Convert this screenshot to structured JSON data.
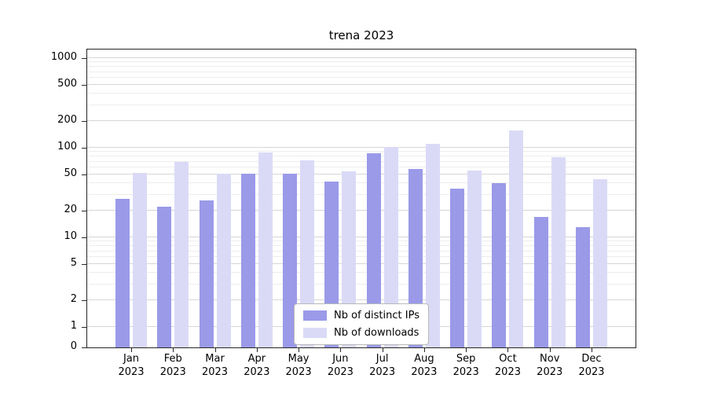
{
  "chart_data": {
    "type": "bar",
    "title": "trena 2023",
    "yscale": "symlog",
    "grid": true,
    "legend_position": "lower center",
    "yticks": [
      0,
      1,
      2,
      5,
      10,
      20,
      50,
      100,
      200,
      500,
      1000
    ],
    "ylim": [
      0,
      1400
    ],
    "categories": [
      "Jan 2023",
      "Feb 2023",
      "Mar 2023",
      "Apr 2023",
      "May 2023",
      "Jun 2023",
      "Jul 2023",
      "Aug 2023",
      "Sep 2023",
      "Oct 2023",
      "Nov 2023",
      "Dec 2023"
    ],
    "series": [
      {
        "name": "Nb of distinct IPs",
        "color": "#9a9ae9",
        "values": [
          27,
          22,
          26,
          51,
          51,
          42,
          86,
          58,
          35,
          40,
          17,
          13
        ]
      },
      {
        "name": "Nb of downloads",
        "color": "#dadaf7",
        "values": [
          52,
          70,
          51,
          88,
          72,
          55,
          103,
          110,
          56,
          155,
          78,
          45
        ]
      }
    ]
  }
}
